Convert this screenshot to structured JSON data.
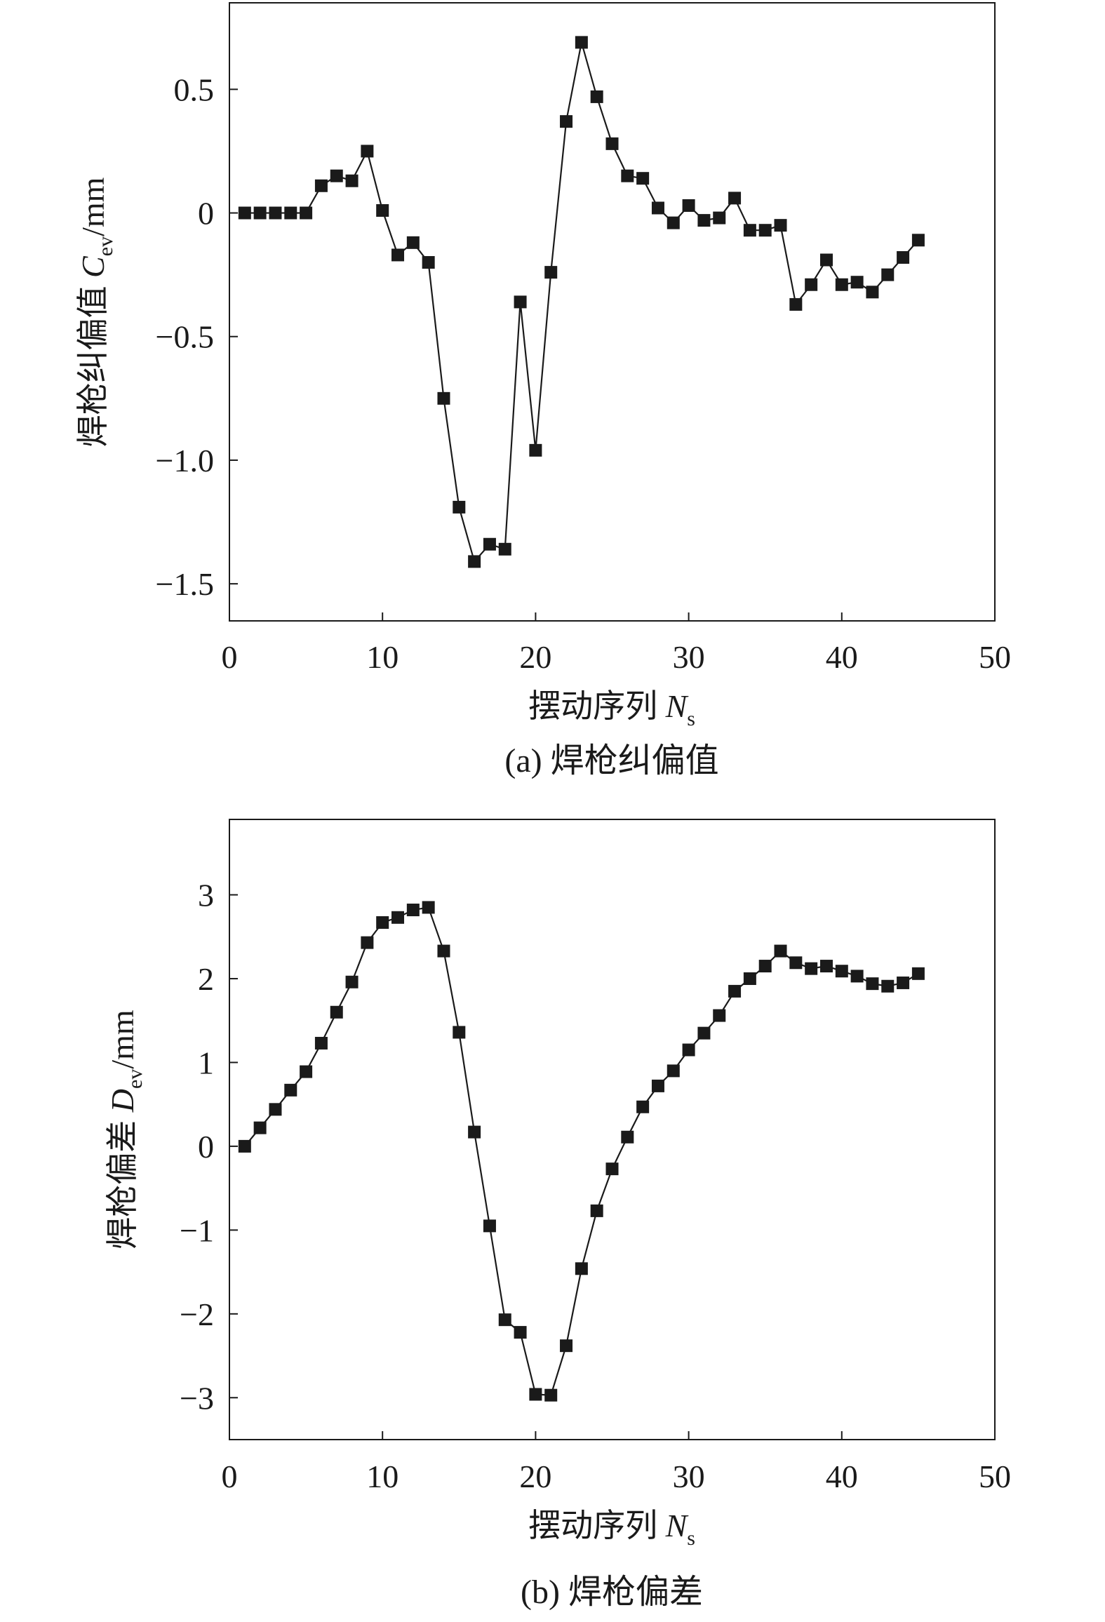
{
  "chart_data": [
    {
      "type": "line",
      "caption": "(a) 焊枪纠偏值",
      "xlabel": {
        "main": "摆动序列 ",
        "var": "N",
        "sub": "s"
      },
      "ylabel": {
        "main": "焊枪纠偏值 ",
        "var": "C",
        "sub": "ev",
        "unit": "/mm"
      },
      "xlim": [
        0,
        50
      ],
      "ylim": [
        -1.65,
        0.85
      ],
      "xticks": [
        0,
        10,
        20,
        30,
        40,
        50
      ],
      "xtick_labels": [
        "0",
        "10",
        "20",
        "30",
        "40",
        "50"
      ],
      "yticks": [
        0.5,
        0,
        -0.5,
        -1.0,
        -1.5
      ],
      "ytick_labels": [
        "0.5",
        "0",
        "−0.5",
        "−1.0",
        "−1.5"
      ],
      "grid": false,
      "marker": "square",
      "color": "#1a1a1a",
      "series": [
        {
          "x": [
            1,
            2,
            3,
            4,
            5,
            6,
            7,
            8,
            9,
            10,
            11,
            12,
            13,
            14,
            15,
            16,
            17,
            18,
            19,
            20,
            21,
            22,
            23,
            24,
            25,
            26,
            27,
            28,
            29,
            30,
            31,
            32,
            33,
            34,
            35,
            36,
            37,
            38,
            39,
            40,
            41,
            42,
            43,
            44,
            45
          ],
          "y": [
            0,
            0,
            0,
            0,
            0,
            0.11,
            0.15,
            0.13,
            0.25,
            0.01,
            -0.17,
            -0.12,
            -0.2,
            -0.75,
            -1.19,
            -1.41,
            -1.34,
            -1.36,
            -0.36,
            -0.96,
            -0.24,
            0.37,
            0.69,
            0.47,
            0.28,
            0.15,
            0.14,
            0.02,
            -0.04,
            0.03,
            -0.03,
            -0.02,
            0.06,
            -0.07,
            -0.07,
            -0.05,
            -0.37,
            -0.29,
            -0.19,
            -0.29,
            -0.28,
            -0.32,
            -0.25,
            -0.18,
            -0.11
          ]
        }
      ]
    },
    {
      "type": "line",
      "caption": "(b) 焊枪偏差",
      "xlabel": {
        "main": "摆动序列 ",
        "var": "N",
        "sub": "s"
      },
      "ylabel": {
        "main": "焊枪偏差 ",
        "var": "D",
        "sub": "ev",
        "unit": "/mm"
      },
      "xlim": [
        0,
        50
      ],
      "ylim": [
        -3.5,
        3.9
      ],
      "xticks": [
        0,
        10,
        20,
        30,
        40,
        50
      ],
      "xtick_labels": [
        "0",
        "10",
        "20",
        "30",
        "40",
        "50"
      ],
      "yticks": [
        3,
        2,
        1,
        0,
        -1,
        -2,
        -3
      ],
      "ytick_labels": [
        "3",
        "2",
        "1",
        "0",
        "−1",
        "−2",
        "−3"
      ],
      "grid": false,
      "marker": "square",
      "color": "#1a1a1a",
      "series": [
        {
          "x": [
            1,
            2,
            3,
            4,
            5,
            6,
            7,
            8,
            9,
            10,
            11,
            12,
            13,
            14,
            15,
            16,
            17,
            18,
            19,
            20,
            21,
            22,
            23,
            24,
            25,
            26,
            27,
            28,
            29,
            30,
            31,
            32,
            33,
            34,
            35,
            36,
            37,
            38,
            39,
            40,
            41,
            42,
            43,
            44,
            45
          ],
          "y": [
            0,
            0.22,
            0.44,
            0.67,
            0.89,
            1.23,
            1.6,
            1.96,
            2.43,
            2.67,
            2.73,
            2.82,
            2.85,
            2.33,
            1.36,
            0.17,
            -0.95,
            -2.07,
            -2.22,
            -2.96,
            -2.97,
            -2.38,
            -1.46,
            -0.77,
            -0.27,
            0.11,
            0.47,
            0.72,
            0.9,
            1.15,
            1.35,
            1.56,
            1.85,
            2.0,
            2.15,
            2.33,
            2.19,
            2.12,
            2.15,
            2.09,
            2.03,
            1.94,
            1.91,
            1.95,
            2.06
          ]
        }
      ]
    }
  ]
}
